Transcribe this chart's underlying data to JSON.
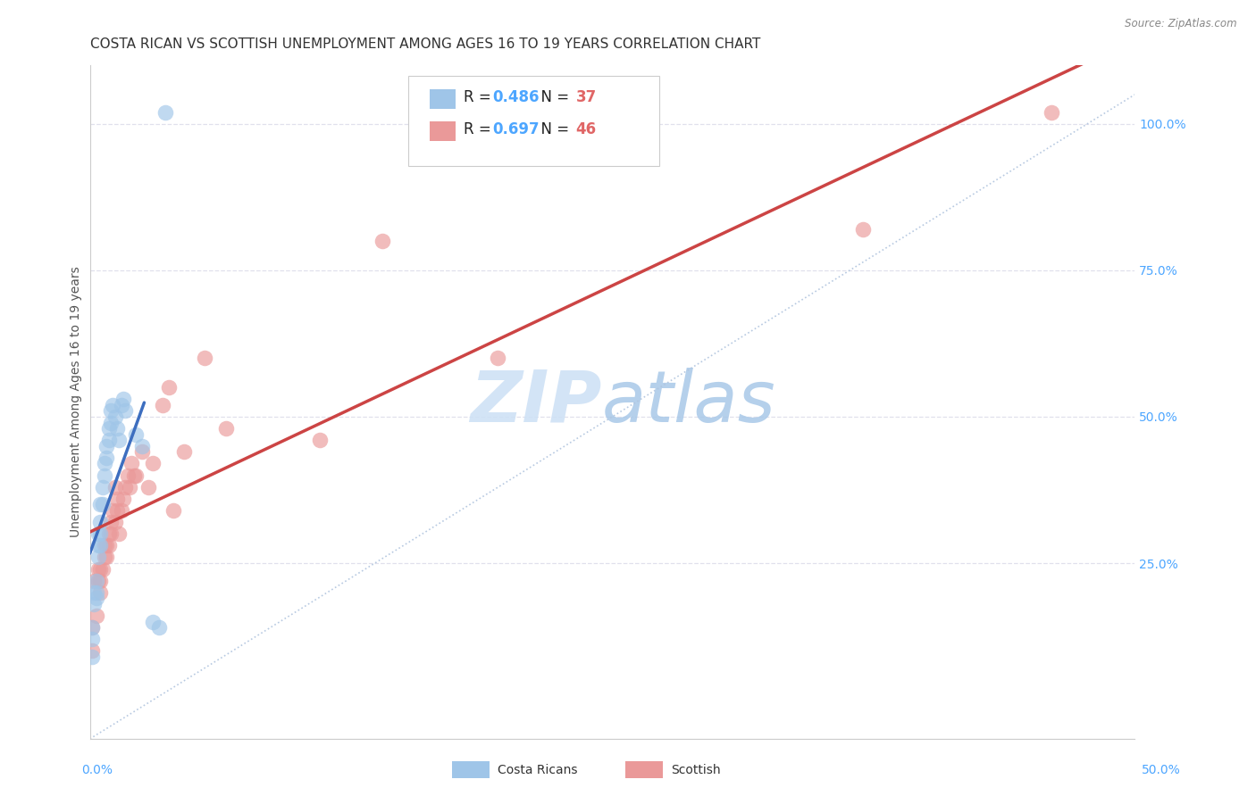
{
  "title": "COSTA RICAN VS SCOTTISH UNEMPLOYMENT AMONG AGES 16 TO 19 YEARS CORRELATION CHART",
  "source": "Source: ZipAtlas.com",
  "ylabel": "Unemployment Among Ages 16 to 19 years",
  "right_yticks": [
    "100.0%",
    "75.0%",
    "50.0%",
    "25.0%"
  ],
  "right_ytick_vals": [
    1.0,
    0.75,
    0.5,
    0.25
  ],
  "xleft_label": "0.0%",
  "xright_label": "50.0%",
  "xmin": 0.0,
  "xmax": 0.5,
  "ymin": -0.05,
  "ymax": 1.1,
  "cr_R": 0.486,
  "cr_N": 37,
  "sc_R": 0.697,
  "sc_N": 46,
  "blue_scatter_color": "#9fc5e8",
  "pink_scatter_color": "#ea9999",
  "blue_line_color": "#3d6ebf",
  "pink_line_color": "#cc4444",
  "ref_line_color": "#b0c4de",
  "watermark_zip_color": "#ccdff5",
  "watermark_atlas_color": "#a0c0e8",
  "background_color": "#ffffff",
  "grid_color": "#e0e0ec",
  "axis_color": "#cccccc",
  "right_tick_color": "#4da6ff",
  "title_fontsize": 11,
  "ylabel_fontsize": 10,
  "tick_fontsize": 10,
  "legend_fontsize": 12,
  "cr_scatter_x": [
    0.001,
    0.001,
    0.001,
    0.002,
    0.002,
    0.003,
    0.003,
    0.003,
    0.004,
    0.004,
    0.004,
    0.005,
    0.005,
    0.005,
    0.005,
    0.006,
    0.006,
    0.007,
    0.007,
    0.008,
    0.008,
    0.009,
    0.009,
    0.01,
    0.01,
    0.011,
    0.012,
    0.013,
    0.014,
    0.015,
    0.016,
    0.017,
    0.022,
    0.025,
    0.03,
    0.033,
    0.036
  ],
  "cr_scatter_y": [
    0.14,
    0.12,
    0.09,
    0.2,
    0.18,
    0.22,
    0.2,
    0.19,
    0.3,
    0.28,
    0.26,
    0.35,
    0.32,
    0.3,
    0.28,
    0.38,
    0.35,
    0.42,
    0.4,
    0.45,
    0.43,
    0.48,
    0.46,
    0.51,
    0.49,
    0.52,
    0.5,
    0.48,
    0.46,
    0.52,
    0.53,
    0.51,
    0.47,
    0.45,
    0.15,
    0.14,
    1.02
  ],
  "sc_scatter_x": [
    0.001,
    0.001,
    0.002,
    0.003,
    0.004,
    0.004,
    0.005,
    0.005,
    0.005,
    0.006,
    0.007,
    0.007,
    0.008,
    0.008,
    0.009,
    0.009,
    0.01,
    0.01,
    0.011,
    0.012,
    0.012,
    0.013,
    0.013,
    0.014,
    0.015,
    0.016,
    0.017,
    0.018,
    0.019,
    0.02,
    0.021,
    0.022,
    0.025,
    0.028,
    0.03,
    0.035,
    0.038,
    0.04,
    0.045,
    0.055,
    0.065,
    0.11,
    0.14,
    0.195,
    0.37,
    0.46
  ],
  "sc_scatter_y": [
    0.14,
    0.1,
    0.22,
    0.16,
    0.24,
    0.22,
    0.24,
    0.22,
    0.2,
    0.24,
    0.28,
    0.26,
    0.28,
    0.26,
    0.3,
    0.28,
    0.32,
    0.3,
    0.34,
    0.32,
    0.38,
    0.36,
    0.34,
    0.3,
    0.34,
    0.36,
    0.38,
    0.4,
    0.38,
    0.42,
    0.4,
    0.4,
    0.44,
    0.38,
    0.42,
    0.52,
    0.55,
    0.34,
    0.44,
    0.6,
    0.48,
    0.46,
    0.8,
    0.6,
    0.82,
    1.02
  ],
  "cr_line_x0": 0.0,
  "cr_line_x1": 0.026,
  "sc_line_x0": 0.0,
  "sc_line_x1": 0.5
}
